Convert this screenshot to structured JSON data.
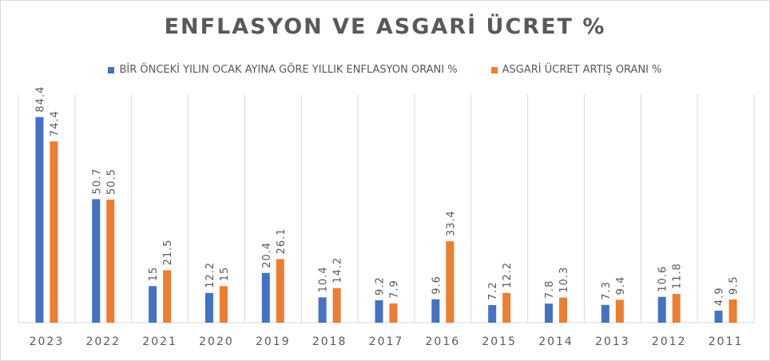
{
  "chart_data": {
    "type": "bar",
    "title": "ENFLASYON  VE ASGARİ ÜCRET %",
    "categories": [
      "2023",
      "2022",
      "2021",
      "2020",
      "2019",
      "2018",
      "2017",
      "2016",
      "2015",
      "2014",
      "2013",
      "2012",
      "2011"
    ],
    "series": [
      {
        "name": "BİR ÖNCEKİ YILIN OCAK AYINA GÖRE YILLIK ENFLASYON ORANI %",
        "color": "#4472c4",
        "values": [
          84.4,
          50.7,
          15,
          12.2,
          20.4,
          10.4,
          9.2,
          9.6,
          7.2,
          7.8,
          7.3,
          10.6,
          4.9
        ]
      },
      {
        "name": "ASGARİ ÜCRET ARTIŞ ORANI %",
        "color": "#ed7d31",
        "values": [
          74.4,
          50.5,
          21.5,
          15,
          26.1,
          14.2,
          7.9,
          33.4,
          12.2,
          10.3,
          9.4,
          11.8,
          9.5
        ]
      }
    ],
    "ylim": [
      0,
      90
    ],
    "grid": "vertical",
    "legend_position": "top",
    "data_labels": true
  }
}
